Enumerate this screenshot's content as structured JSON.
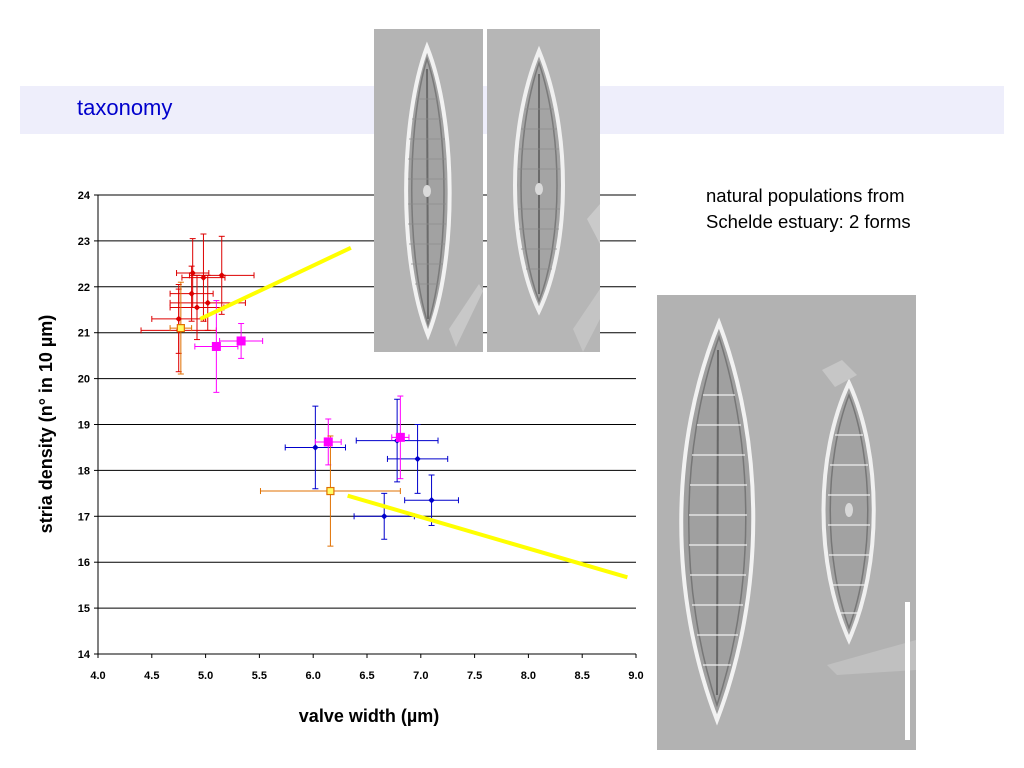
{
  "slide": {
    "title": "taxonomy",
    "note_line1": "natural populations from",
    "note_line2": "Schelde estuary: 2 forms"
  },
  "colors": {
    "title_band": "#eeeefb",
    "title_text": "#0000cc",
    "red_series": "#dd0000",
    "blue_series": "#0000cc",
    "magenta_series": "#ff00ff",
    "orange_series": "#e07000",
    "yellow_line": "#ffff00"
  },
  "chart_data": {
    "type": "scatter",
    "xlabel": "valve width (µm)",
    "ylabel": "stria density (n° in 10 µm)",
    "xlim": [
      4.0,
      9.0
    ],
    "ylim": [
      14,
      24
    ],
    "xticks": [
      "4.0",
      "4.5",
      "5.0",
      "5.5",
      "6.0",
      "6.5",
      "7.0",
      "7.5",
      "8.0",
      "8.5",
      "9.0"
    ],
    "yticks": [
      "14",
      "15",
      "16",
      "17",
      "18",
      "19",
      "20",
      "21",
      "22",
      "23",
      "24"
    ],
    "horizontal_grid": true,
    "series": [
      {
        "color": "red",
        "marker": "diamond",
        "points": [
          {
            "x": 4.88,
            "y": 22.3,
            "xerr": 0.15,
            "yerr": 0.75
          },
          {
            "x": 4.98,
            "y": 22.2,
            "xerr": 0.2,
            "yerr": 0.95
          },
          {
            "x": 5.15,
            "y": 22.25,
            "xerr": 0.3,
            "yerr": 0.85
          },
          {
            "x": 4.87,
            "y": 21.85,
            "xerr": 0.2,
            "yerr": 0.6
          },
          {
            "x": 4.75,
            "y": 21.3,
            "xerr": 0.25,
            "yerr": 0.75
          },
          {
            "x": 4.92,
            "y": 21.55,
            "xerr": 0.25,
            "yerr": 0.7
          },
          {
            "x": 5.02,
            "y": 21.65,
            "xerr": 0.35,
            "yerr": 0.6
          },
          {
            "x": 4.75,
            "y": 21.05,
            "xerr": 0.35,
            "yerr": 0.9
          }
        ]
      },
      {
        "color": "blue",
        "marker": "diamond",
        "points": [
          {
            "x": 6.02,
            "y": 18.5,
            "xerr": 0.28,
            "yerr": 0.9
          },
          {
            "x": 6.78,
            "y": 18.65,
            "xerr": 0.38,
            "yerr": 0.9
          },
          {
            "x": 6.97,
            "y": 18.25,
            "xerr": 0.28,
            "yerr": 0.75
          },
          {
            "x": 6.66,
            "y": 17.0,
            "xerr": 0.28,
            "yerr": 0.5
          },
          {
            "x": 7.1,
            "y": 17.35,
            "xerr": 0.25,
            "yerr": 0.55
          }
        ]
      },
      {
        "color": "magenta",
        "marker": "square",
        "points": [
          {
            "x": 5.1,
            "y": 20.7,
            "xerr": 0.2,
            "yerr": 1.0
          },
          {
            "x": 5.33,
            "y": 20.82,
            "xerr": 0.2,
            "yerr": 0.38
          },
          {
            "x": 6.14,
            "y": 18.62,
            "xerr": 0.12,
            "yerr": 0.5
          },
          {
            "x": 6.81,
            "y": 18.72,
            "xerr": 0.08,
            "yerr": 0.9
          }
        ]
      },
      {
        "color": "orange",
        "marker": "open-square",
        "points": [
          {
            "x": 4.77,
            "y": 21.1,
            "xerr": 0.1,
            "yerr": 1.0
          },
          {
            "x": 6.16,
            "y": 17.55,
            "xerr": 0.65,
            "yerr": 1.2
          }
        ]
      }
    ],
    "trend_lines": [
      {
        "color": "yellow",
        "x": [
          4.95,
          6.35
        ],
        "y": [
          21.3,
          22.85
        ]
      },
      {
        "color": "yellow",
        "x": [
          6.32,
          8.92
        ],
        "y": [
          17.45,
          15.67
        ]
      }
    ]
  },
  "images": {
    "top_left": "diatom-valve-micrograph",
    "top_right": "diatom-valve-micrograph",
    "bottom": "diatom-pair-micrograph-with-scale-bar"
  }
}
